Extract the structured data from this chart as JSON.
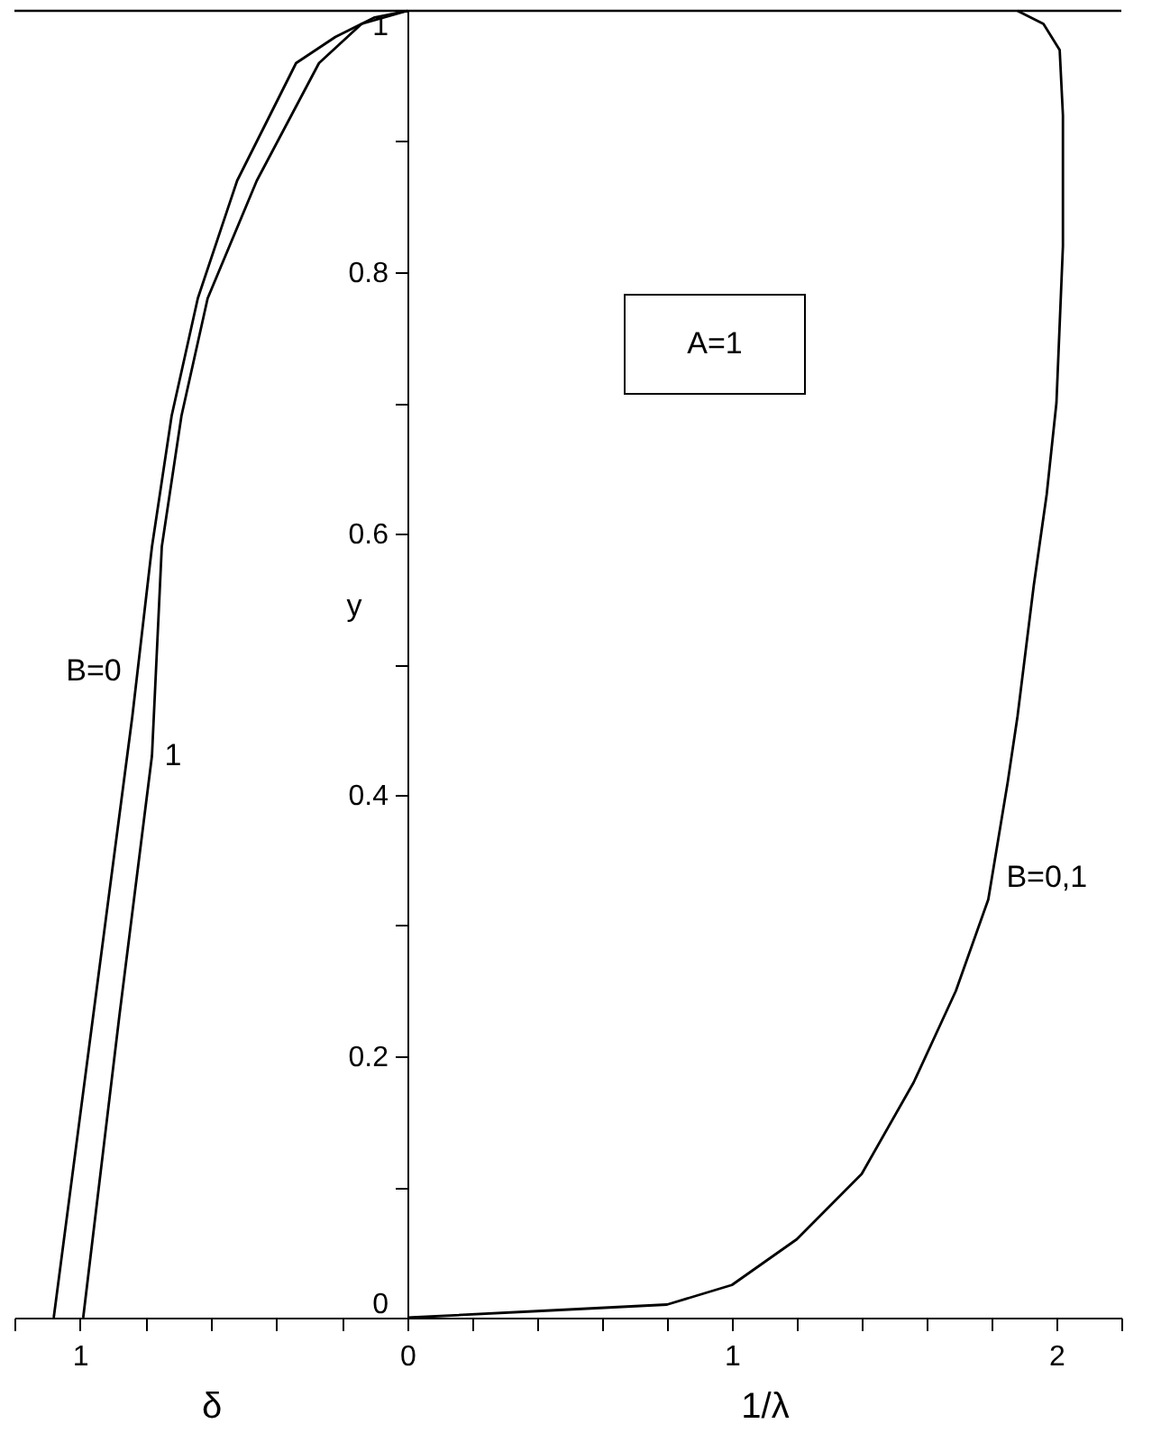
{
  "chart_data": [
    {
      "type": "line",
      "xlabel": "δ",
      "ylabel": "y",
      "xlim": [
        1.2,
        0
      ],
      "xticks": [
        0,
        {
          "value": 0.2,
          "label": null
        },
        {
          "value": 0.4,
          "label": null
        },
        {
          "value": 0.6,
          "label": null
        },
        {
          "value": 0.8,
          "label": null
        },
        1,
        {
          "value": 1.2,
          "label": null
        }
      ],
      "ylim": [
        0,
        1
      ],
      "yticks": [
        0,
        {
          "value": 0.1,
          "label": null
        },
        0.2,
        {
          "value": 0.3,
          "label": null
        },
        0.4,
        {
          "value": 0.5,
          "label": null
        },
        0.6,
        {
          "value": 0.7,
          "label": null
        },
        0.8,
        {
          "value": 0.9,
          "label": null
        },
        1
      ],
      "series": [
        {
          "name": "B=0",
          "color": "#000000",
          "x": [
            0,
            0.1,
            0.22,
            0.34,
            0.52,
            0.64,
            0.72,
            0.78,
            0.84,
            0.96,
            1.08
          ],
          "values": [
            1,
            0.995,
            0.98,
            0.96,
            0.87,
            0.78,
            0.69,
            0.59,
            0.46,
            0.23,
            0
          ]
        },
        {
          "name": "1",
          "color": "#000000",
          "x": [
            0,
            0.14,
            0.27,
            0.46,
            0.61,
            0.69,
            0.75,
            0.78,
            0.88,
            0.99
          ],
          "values": [
            1,
            0.99,
            0.96,
            0.87,
            0.78,
            0.69,
            0.59,
            0.43,
            0.23,
            0
          ]
        }
      ],
      "ref_lines": [
        {
          "axis": "y",
          "value": 1,
          "color": "#000000"
        }
      ]
    },
    {
      "type": "line",
      "xlabel": "1/λ",
      "tick_labels": "x",
      "xlim": [
        0,
        2.2
      ],
      "xticks": [
        {
          "value": 0,
          "label": null
        },
        {
          "value": 0.2,
          "label": null
        },
        {
          "value": 0.4,
          "label": null
        },
        {
          "value": 0.6,
          "label": null
        },
        {
          "value": 0.8,
          "label": null
        },
        1,
        {
          "value": 1.2,
          "label": null
        },
        {
          "value": 1.4,
          "label": null
        },
        {
          "value": 1.6,
          "label": null
        },
        {
          "value": 1.8,
          "label": null
        },
        2,
        {
          "value": 2.2,
          "label": null
        }
      ],
      "ylim": [
        0,
        1
      ],
      "series": [
        {
          "name": "B=0,1",
          "color": "#000000",
          "x": [
            0,
            0.4,
            0.8,
            1.0,
            1.2,
            1.4,
            1.56,
            1.69,
            1.79,
            1.85,
            1.88,
            1.93,
            1.97,
            2.0,
            2.02,
            2.02,
            2.01,
            1.96,
            1.88
          ],
          "values": [
            0,
            0.005,
            0.01,
            0.025,
            0.06,
            0.11,
            0.18,
            0.25,
            0.32,
            0.41,
            0.46,
            0.56,
            0.63,
            0.7,
            0.82,
            0.92,
            0.97,
            0.99,
            1
          ]
        }
      ],
      "ref_lines": [
        {
          "axis": "y",
          "value": 1,
          "color": "#000000"
        }
      ],
      "annotations": [
        "A=1"
      ]
    }
  ]
}
